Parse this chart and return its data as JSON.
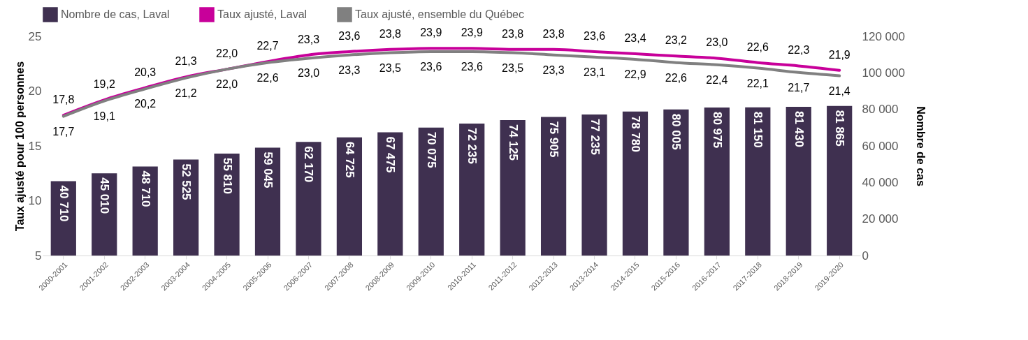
{
  "chart_data": {
    "type": "bar",
    "ylabel": "Taux ajusté pour 100 personnes",
    "y2label": "Nombre de cas",
    "categories": [
      "2000-2001",
      "2001-2002",
      "2002-2003",
      "2003-2004",
      "2004-2005",
      "2005-2006",
      "2006-2007",
      "2007-2008",
      "2008-2009",
      "2009-2010",
      "2010-2011",
      "2011-2012",
      "2012-2013",
      "2013-2014",
      "2014-2015",
      "2015-2016",
      "2016-2017",
      "2017-2018",
      "2018-2019",
      "2019-2020"
    ],
    "series": [
      {
        "name": "Nombre de cas, Laval",
        "axis": "y2",
        "color": "#3f3050",
        "values": [
          40710,
          45010,
          48710,
          52525,
          55810,
          59045,
          62170,
          64725,
          67475,
          70075,
          72235,
          74125,
          75905,
          77235,
          78780,
          80005,
          80975,
          81150,
          81430,
          81865
        ]
      },
      {
        "name": "Taux ajusté, Laval",
        "type": "line",
        "color": "#c8009a",
        "values": [
          17.8,
          19.2,
          20.3,
          21.3,
          22.0,
          22.7,
          23.3,
          23.6,
          23.8,
          23.9,
          23.9,
          23.8,
          23.8,
          23.6,
          23.4,
          23.2,
          23.0,
          22.6,
          22.3,
          21.9
        ],
        "value_labels": [
          "17,8",
          "19,2",
          "20,3",
          "21,3",
          "22,0",
          "22,7",
          "23,3",
          "23,6",
          "23,8",
          "23,9",
          "23,9",
          "23,8",
          "23,8",
          "23,6",
          "23,4",
          "23,2",
          "23,0",
          "22,6",
          "22,3",
          "21,9"
        ]
      },
      {
        "name": "Taux ajusté, ensemble du Québec",
        "type": "line",
        "color": "#808080",
        "values": [
          17.7,
          19.1,
          20.2,
          21.2,
          22.0,
          22.6,
          23.0,
          23.3,
          23.5,
          23.6,
          23.6,
          23.5,
          23.3,
          23.1,
          22.9,
          22.6,
          22.4,
          22.1,
          21.7,
          21.4
        ],
        "value_labels": [
          "17,7",
          "19,1",
          "20,2",
          "21,2",
          "22,0",
          "22,6",
          "23,0",
          "23,3",
          "23,5",
          "23,6",
          "23,6",
          "23,5",
          "23,3",
          "23,1",
          "22,9",
          "22,6",
          "22,4",
          "22,1",
          "21,7",
          "21,4"
        ]
      }
    ],
    "ylim": [
      5,
      25
    ],
    "yticks": [
      5,
      10,
      15,
      20,
      25
    ],
    "y2lim": [
      0,
      120000
    ],
    "y2ticks": [
      0,
      20000,
      40000,
      60000,
      80000,
      100000,
      120000
    ],
    "data_labels": true,
    "legend": "top",
    "grid": false
  }
}
